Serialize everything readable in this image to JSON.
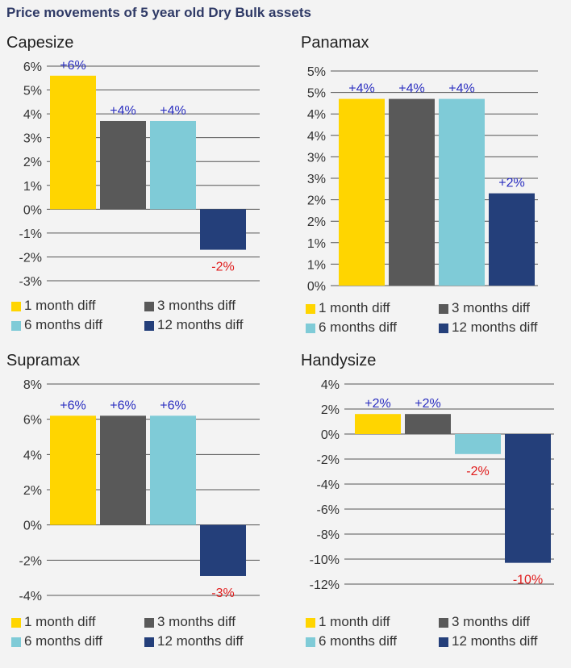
{
  "title": "Price movements of 5 year old Dry Bulk assets",
  "legend": [
    {
      "label": "1 month diff",
      "color": "#ffd500"
    },
    {
      "label": "3 months diff",
      "color": "#595959"
    },
    {
      "label": "6 months diff",
      "color": "#7fcbd7"
    },
    {
      "label": "12 months diff",
      "color": "#243f7a"
    }
  ],
  "colors": {
    "positive_label": "#2b2fc0",
    "negative_label": "#e01d1d",
    "gridline": "#555555"
  },
  "chart_data": [
    {
      "type": "bar",
      "title": "Capesize",
      "categories": [
        "1 month diff",
        "3 months diff",
        "6 months diff",
        "12 months diff"
      ],
      "values": [
        5.6,
        3.7,
        3.7,
        -1.7
      ],
      "data_labels": [
        "+6%",
        "+4%",
        "+4%",
        "-2%"
      ],
      "ylim": [
        -3,
        6
      ],
      "yticks": [
        6,
        5,
        4,
        3,
        2,
        1,
        0,
        -1,
        -2,
        -3
      ],
      "ytick_labels": [
        "6%",
        "5%",
        "4%",
        "3%",
        "2%",
        "1%",
        "0%",
        "-1%",
        "-2%",
        "-3%"
      ]
    },
    {
      "type": "bar",
      "title": "Panamax",
      "categories": [
        "1 month diff",
        "3 months diff",
        "6 months diff",
        "12 months diff"
      ],
      "values": [
        4.35,
        4.35,
        4.35,
        2.15
      ],
      "data_labels": [
        "+4%",
        "+4%",
        "+4%",
        "+2%"
      ],
      "ylim": [
        0,
        5
      ],
      "yticks": [
        5,
        4.5,
        4,
        3.5,
        3,
        2.5,
        2,
        1.5,
        1,
        0.5,
        0
      ],
      "ytick_labels": [
        "5%",
        "5%",
        "4%",
        "4%",
        "3%",
        "3%",
        "2%",
        "2%",
        "1%",
        "1%",
        "0%"
      ]
    },
    {
      "type": "bar",
      "title": "Supramax",
      "categories": [
        "1 month diff",
        "3 months diff",
        "6 months diff",
        "12 months diff"
      ],
      "values": [
        6.2,
        6.2,
        6.2,
        -2.9
      ],
      "data_labels": [
        "+6%",
        "+6%",
        "+6%",
        "-3%"
      ],
      "ylim": [
        -4,
        8
      ],
      "yticks": [
        8,
        6,
        4,
        2,
        0,
        -2,
        -4
      ],
      "ytick_labels": [
        "8%",
        "6%",
        "4%",
        "2%",
        "0%",
        "-2%",
        "-4%"
      ]
    },
    {
      "type": "bar",
      "title": "Handysize",
      "categories": [
        "1 month diff",
        "3 months diff",
        "6 months diff",
        "12 months diff"
      ],
      "values": [
        1.6,
        1.6,
        -1.6,
        -10.3
      ],
      "data_labels": [
        "+2%",
        "+2%",
        "-2%",
        "-10%"
      ],
      "ylim": [
        -12,
        4
      ],
      "yticks": [
        4,
        2,
        0,
        -2,
        -4,
        -6,
        -8,
        -10,
        -12
      ],
      "ytick_labels": [
        "4%",
        "2%",
        "0%",
        "-2%",
        "-4%",
        "-6%",
        "-8%",
        "-10%",
        "-12%"
      ]
    }
  ]
}
